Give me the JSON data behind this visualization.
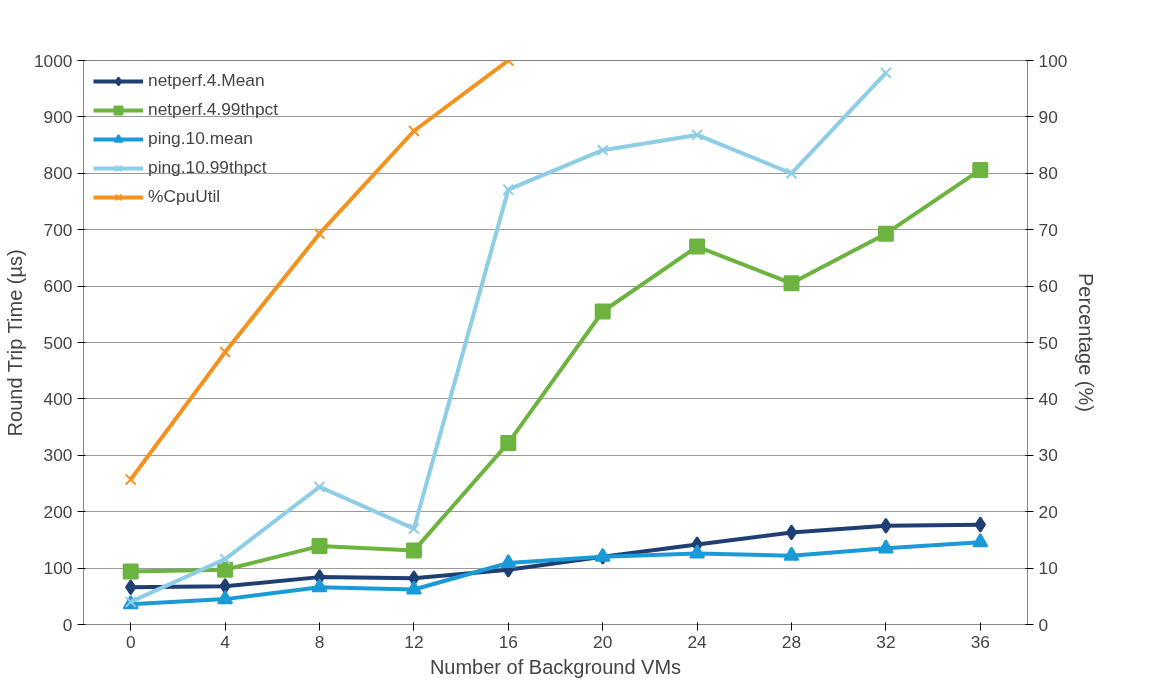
{
  "chart_data": {
    "type": "line",
    "xlabel": "Number of Background VMs",
    "ylabel": "Round Trip Time (µs)",
    "y2label": "Percentage (%)",
    "categories": [
      "0",
      "4",
      "8",
      "12",
      "16",
      "20",
      "24",
      "28",
      "32",
      "36"
    ],
    "series": [
      {
        "name": "netperf.4.Mean",
        "color": "#1f3f73",
        "marker": "diamond",
        "values": [
          66,
          68,
          84,
          82,
          97,
          120,
          142,
          163,
          175,
          177
        ]
      },
      {
        "name": "netperf.4.99thpct",
        "color": "#6db33f",
        "marker": "square",
        "values": [
          94,
          97,
          139,
          131,
          322,
          555,
          670,
          605,
          693,
          806
        ]
      },
      {
        "name": "ping.10.mean",
        "color": "#1a9ad6",
        "marker": "triangle",
        "values": [
          36,
          45,
          66,
          62,
          109,
          120,
          126,
          122,
          135,
          146
        ]
      },
      {
        "name": "ping.10.99thpct",
        "color": "#8ecde6",
        "marker": "cross",
        "values": [
          40,
          116,
          244,
          170,
          771,
          841,
          868,
          800,
          978,
          null
        ]
      },
      {
        "name": "%CpuUtil",
        "color": "#f5921e",
        "marker": "cross",
        "axis": "y2",
        "values": [
          25.7,
          48.3,
          69.3,
          87.5,
          100,
          null,
          null,
          null,
          null,
          null
        ]
      }
    ],
    "ylim": [
      0,
      1000
    ],
    "yticks": [
      0,
      100,
      200,
      300,
      400,
      500,
      600,
      700,
      800,
      900,
      1000
    ],
    "y2lim": [
      0,
      100
    ],
    "y2ticks": [
      0,
      10,
      20,
      30,
      40,
      50,
      60,
      70,
      80,
      90,
      100
    ],
    "grid": "y",
    "legend": "top left",
    "line_style": "solid"
  }
}
